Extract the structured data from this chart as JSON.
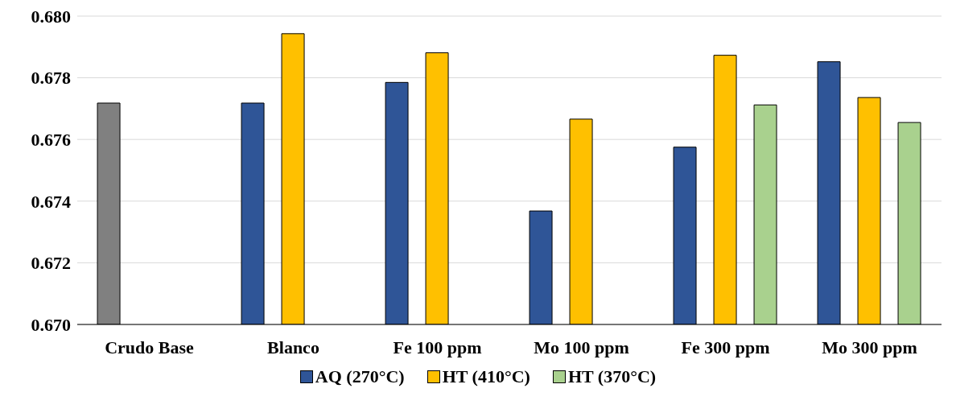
{
  "chart_data": {
    "type": "bar",
    "categories": [
      "Crudo Base",
      "Blanco",
      "Fe 100 ppm",
      "Mo 100 ppm",
      "Fe 300 ppm",
      "Mo 300 ppm"
    ],
    "series": [
      {
        "name": "AQ (270°C)",
        "color": "#2f5597",
        "colors": [
          "#808080",
          "#2f5597",
          "#2f5597",
          "#2f5597",
          "#2f5597",
          "#2f5597"
        ],
        "values": [
          0.67718,
          0.67718,
          0.67785,
          0.67368,
          0.67575,
          0.67852
        ]
      },
      {
        "name": "HT (410°C)",
        "color": "#ffc000",
        "values": [
          null,
          0.67943,
          0.67881,
          0.67666,
          0.67873,
          0.67736
        ]
      },
      {
        "name": "HT (370°C)",
        "color": "#a9d18e",
        "values": [
          null,
          null,
          null,
          null,
          0.67712,
          0.67655
        ]
      }
    ],
    "ylim": [
      0.67,
      0.68
    ],
    "yticks": [
      {
        "value": 0.67,
        "label": "0.670"
      },
      {
        "value": 0.672,
        "label": "0.672"
      },
      {
        "value": 0.674,
        "label": "0.674"
      },
      {
        "value": 0.676,
        "label": "0.676"
      },
      {
        "value": 0.678,
        "label": "0.678"
      },
      {
        "value": 0.68,
        "label": "0.680"
      }
    ],
    "grid": "y",
    "legend": "bottom"
  }
}
